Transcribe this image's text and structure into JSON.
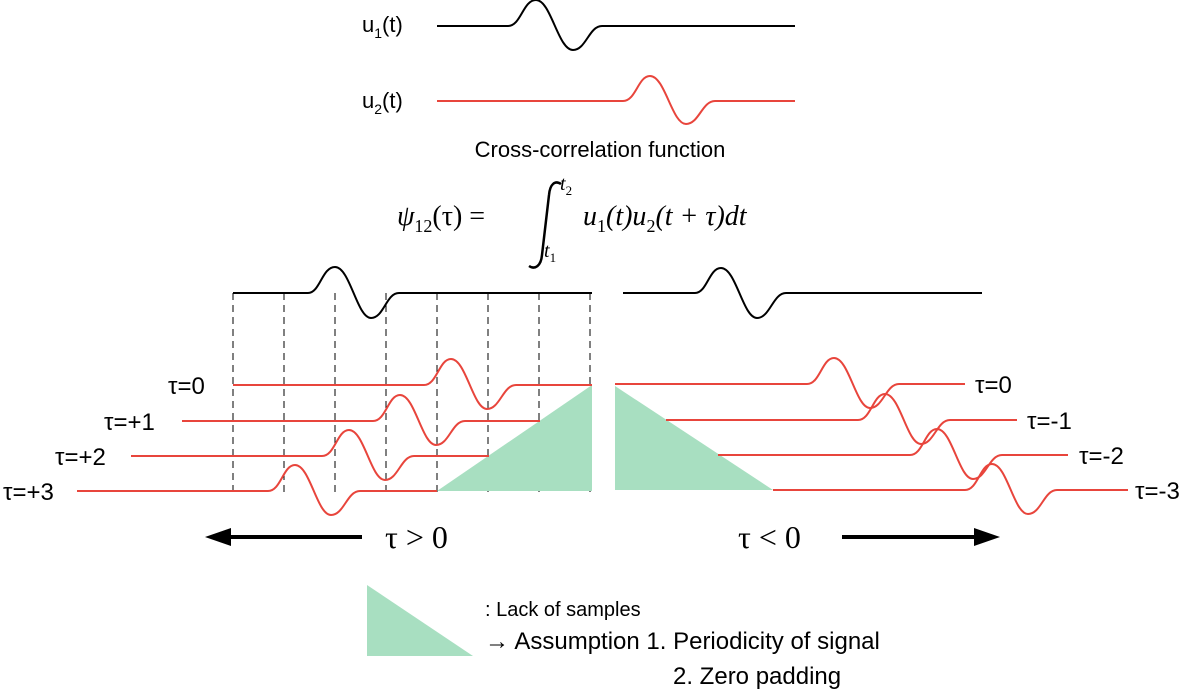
{
  "signals": {
    "u1_label": "u",
    "u1_sub": "1",
    "u1_suffix": "(t)",
    "u2_label": "u",
    "u2_sub": "2",
    "u2_suffix": "(t)"
  },
  "caption": "Cross-correlation function",
  "formula": {
    "lhs": "ψ",
    "lhs_sub": "12",
    "lhs_arg": "(τ) =",
    "upper": "t",
    "upper_sub": "2",
    "lower": "t",
    "lower_sub": "1",
    "integrand": "u",
    "integrand_sub1": "1",
    "integrand_mid": "(t)u",
    "integrand_sub2": "2",
    "integrand_end": "(t + τ)dt"
  },
  "left_panel": {
    "lags": [
      "τ=0",
      "τ=+1",
      "τ=+2",
      "τ=+3"
    ],
    "arrow_label": "τ > 0"
  },
  "right_panel": {
    "lags": [
      "τ=0",
      "τ=-1",
      "τ=-2",
      "τ=-3"
    ],
    "arrow_label": "τ < 0"
  },
  "legend": {
    "line1": ": Lack of samples",
    "line2": "→ Assumption 1. Periodicity of signal",
    "line3": "2. Zero padding"
  },
  "colors": {
    "reference_signal": "#000000",
    "shifted_signal": "#e8453c",
    "missing_samples_fill": "#a8dfc1"
  }
}
